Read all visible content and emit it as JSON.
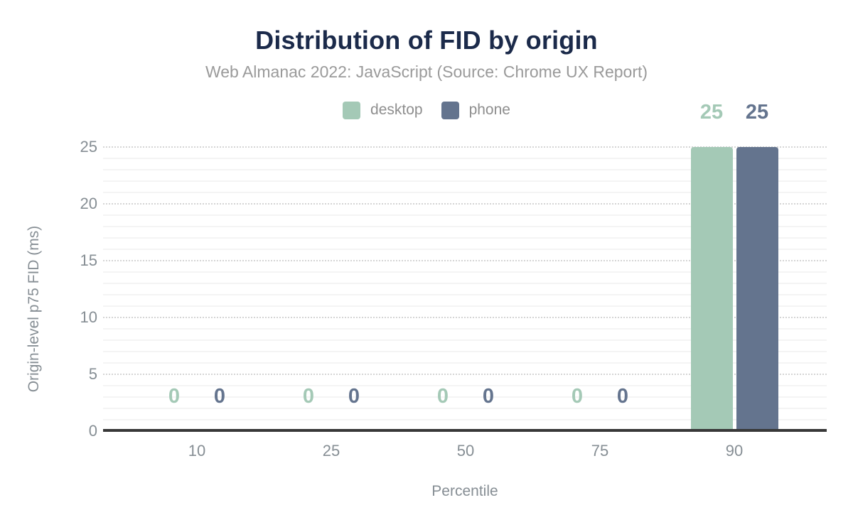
{
  "header": {
    "title": "Distribution of FID by origin",
    "subtitle": "Web Almanac 2022: JavaScript (Source: Chrome UX Report)"
  },
  "legend": {
    "items": [
      {
        "label": "desktop",
        "color": "#a4c9b6"
      },
      {
        "label": "phone",
        "color": "#64748e"
      }
    ]
  },
  "chart_data": {
    "type": "bar",
    "title": "Distribution of FID by origin",
    "subtitle": "Web Almanac 2022: JavaScript (Source: Chrome UX Report)",
    "categories": [
      "10",
      "25",
      "50",
      "75",
      "90"
    ],
    "series": [
      {
        "name": "desktop",
        "color": "#a4c9b6",
        "values": [
          0,
          0,
          0,
          0,
          25
        ]
      },
      {
        "name": "phone",
        "color": "#64748e",
        "values": [
          0,
          0,
          0,
          0,
          25
        ]
      }
    ],
    "xlabel": "Percentile",
    "ylabel": "Origin-level p75 FID (ms)",
    "yticks": [
      0,
      5,
      10,
      15,
      20,
      25
    ],
    "ylim": [
      0,
      25
    ],
    "grid": "horizontal minor lines every 1 unit, dotted major lines every 5 units",
    "legend_position": "top-center",
    "value_labels": true
  },
  "colors": {
    "background": "#ffffff",
    "title_text": "#1b2a4a",
    "subtitle_text": "#9a9a9a",
    "axis_text": "#868e94",
    "legend_text": "#8e8e8e",
    "axis_line": "#383838",
    "grid_minor": "#f4f4f4",
    "grid_major": "#d5d5d5",
    "desktop_series": "#a4c9b6",
    "phone_series": "#64748e"
  }
}
